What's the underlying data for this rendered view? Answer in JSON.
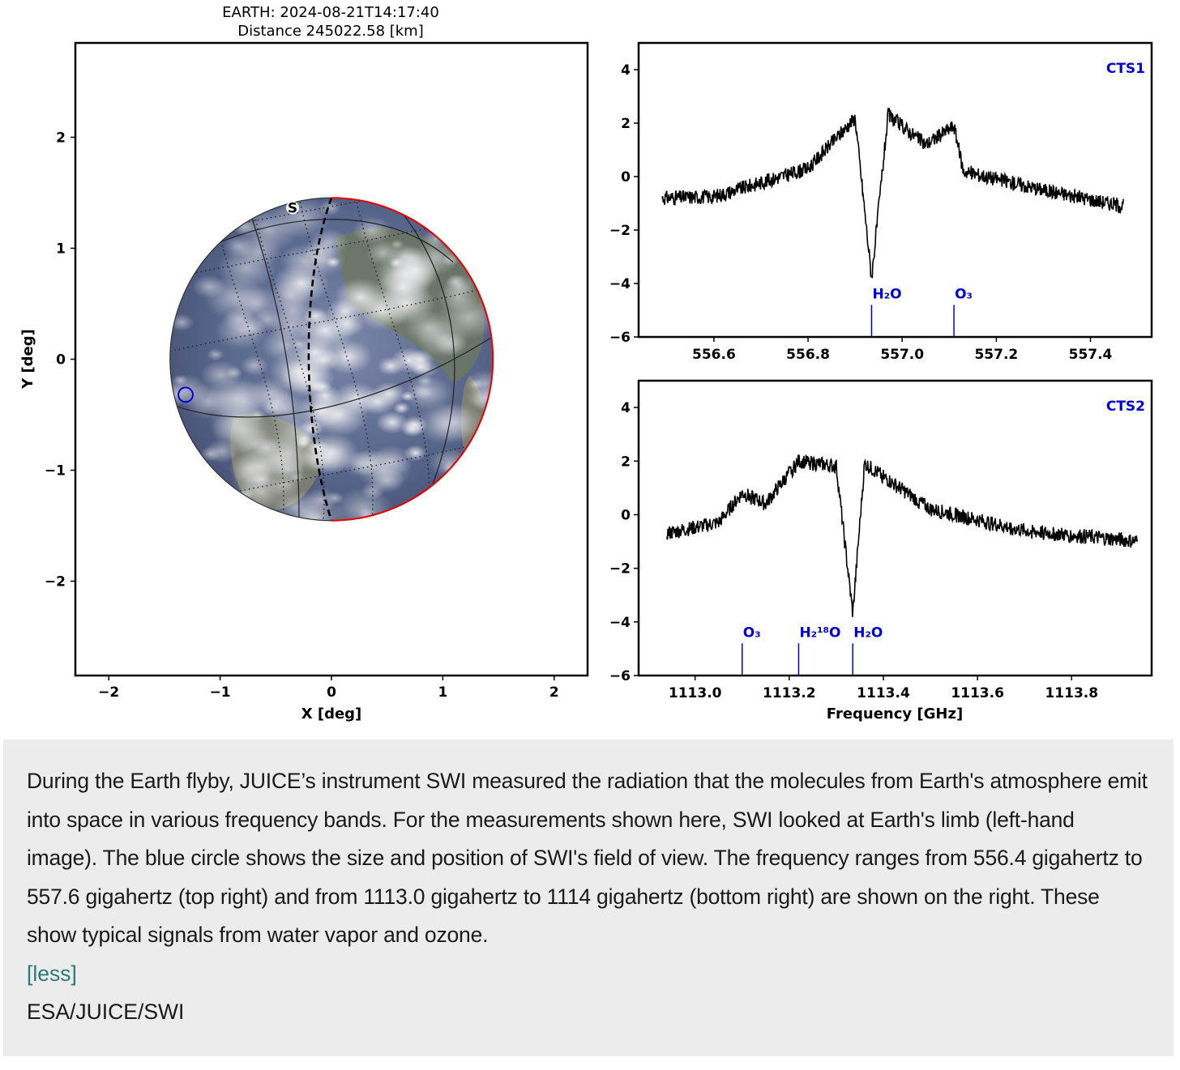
{
  "colors": {
    "accent_blue": "#0000dd",
    "limb_red": "#ee0000",
    "caption_bg": "#ececec",
    "link": "#2c7a78"
  },
  "chart_data": [
    {
      "type": "scatter",
      "panel": "earth-view",
      "title": "EARTH: 2024-08-21T14:17:40",
      "subtitle": "Distance 245022.58 [km]",
      "xlabel": "X [deg]",
      "ylabel": "Y [deg]",
      "xlim": [
        -2.3,
        2.3
      ],
      "ylim": [
        -2.85,
        2.85
      ],
      "xticks": [
        -2,
        -1,
        0,
        1,
        2
      ],
      "yticks": [
        -2,
        -1,
        0,
        1,
        2
      ],
      "earth": {
        "center": [
          0,
          0
        ],
        "radius_deg": 1.45
      },
      "pole_label": "S",
      "field_of_view": {
        "x": -1.31,
        "y": -0.32,
        "radius_deg": 0.065
      },
      "grid": false
    },
    {
      "type": "line",
      "panel": "cts1",
      "label": "CTS1",
      "xlim": [
        556.44,
        557.53
      ],
      "ylim": [
        -6,
        5
      ],
      "xticks": [
        556.6,
        556.8,
        557.0,
        557.2,
        557.4
      ],
      "xtick_labels": [
        "556.6",
        "556.8",
        "557.0",
        "557.2",
        "557.4"
      ],
      "yticks": [
        4,
        2,
        0,
        -2,
        -4,
        -6
      ],
      "x_range": [
        556.49,
        557.47
      ],
      "features": [
        {
          "x": 556.49,
          "y": -0.8
        },
        {
          "x": 556.6,
          "y": -0.75
        },
        {
          "x": 556.8,
          "y": 0.3
        },
        {
          "x": 556.9,
          "y": 2.2
        },
        {
          "x": 556.935,
          "y": -3.8
        },
        {
          "x": 556.97,
          "y": 2.3
        },
        {
          "x": 557.05,
          "y": 1.2
        },
        {
          "x": 557.11,
          "y": 1.9
        },
        {
          "x": 557.13,
          "y": 0.2
        },
        {
          "x": 557.3,
          "y": -0.5
        },
        {
          "x": 557.47,
          "y": -1.1
        }
      ],
      "lines": [
        {
          "name": "H₂O",
          "x": 556.935,
          "ymax": -4.8
        },
        {
          "name": "O₃",
          "x": 557.11,
          "ymax": -4.8
        }
      ]
    },
    {
      "type": "line",
      "panel": "cts2",
      "label": "CTS2",
      "xlabel": "Frequency [GHz]",
      "xlim": [
        1112.88,
        1113.97
      ],
      "ylim": [
        -6,
        5
      ],
      "xticks": [
        1113.0,
        1113.2,
        1113.4,
        1113.6,
        1113.8
      ],
      "xtick_labels": [
        "1113.0",
        "1113.2",
        "1113.4",
        "1113.6",
        "1113.8"
      ],
      "yticks": [
        4,
        2,
        0,
        -2,
        -4,
        -6
      ],
      "x_range": [
        1112.94,
        1113.94
      ],
      "features": [
        {
          "x": 1112.94,
          "y": -0.7
        },
        {
          "x": 1113.05,
          "y": -0.3
        },
        {
          "x": 1113.1,
          "y": 0.8
        },
        {
          "x": 1113.15,
          "y": 0.4
        },
        {
          "x": 1113.22,
          "y": 2.0
        },
        {
          "x": 1113.3,
          "y": 1.8
        },
        {
          "x": 1113.335,
          "y": -3.7
        },
        {
          "x": 1113.36,
          "y": 1.9
        },
        {
          "x": 1113.5,
          "y": 0.2
        },
        {
          "x": 1113.7,
          "y": -0.6
        },
        {
          "x": 1113.94,
          "y": -1.0
        }
      ],
      "lines": [
        {
          "name": "O₃",
          "x": 1113.1,
          "ymax": -4.8
        },
        {
          "name": "H₂¹⁸O",
          "x": 1113.22,
          "ymax": -4.8
        },
        {
          "name": "H₂O",
          "x": 1113.335,
          "ymax": -4.8
        }
      ]
    }
  ],
  "caption": {
    "text": "During the Earth flyby, JUICE’s instrument SWI measured the radiation that the molecules from Earth's atmosphere emit into space in various frequency bands. For the measurements shown here, SWI looked at Earth's limb (left-hand image). The blue circle shows the size and position of SWI's field of view. The frequency ranges from 556.4 gigahertz to 557.6 gigahertz (top right) and from 1113.0 gigahertz to 1114 gigahertz (bottom right) are shown on the right. These show typical signals from water vapor and ozone.",
    "less_link": "[less]",
    "credit": "ESA/JUICE/SWI"
  }
}
